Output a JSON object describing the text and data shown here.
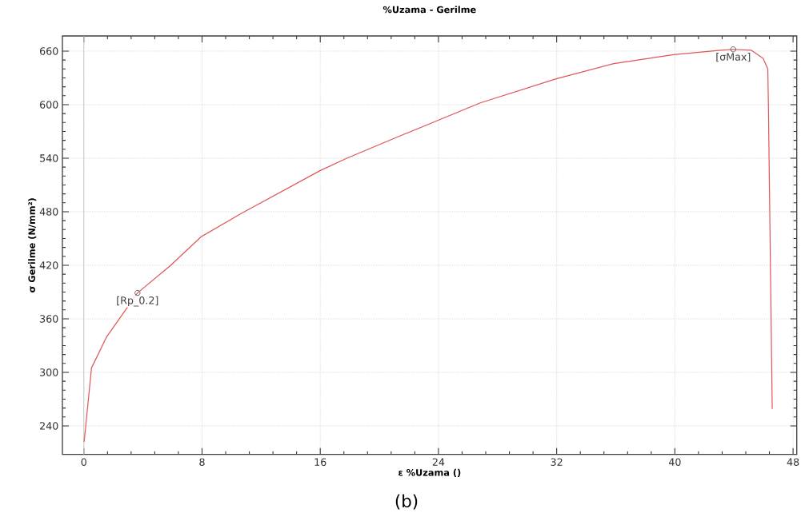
{
  "chart_data": {
    "type": "line",
    "title": "%Uzama - Gerilme",
    "xlabel": "ε %Uzama ()",
    "ylabel": "σ Gerilme (N/mm²)",
    "xlim": [
      -1.45,
      48.25
    ],
    "ylim": [
      208,
      677
    ],
    "xticks": [
      0,
      8,
      16,
      24,
      32,
      40,
      48
    ],
    "yticks": [
      240,
      300,
      360,
      420,
      480,
      540,
      600,
      660
    ],
    "grid": true,
    "marker": "none",
    "line_style": "solid",
    "ref_lines": [
      {
        "axis": "x",
        "value": 0,
        "color": "#c8c8c8"
      }
    ],
    "series": [
      {
        "color": "#e05555",
        "x": [
          0.02,
          0.52,
          1.55,
          3.63,
          5.88,
          7.94,
          10.76,
          15.98,
          17.8,
          21.41,
          26.83,
          31.97,
          35.86,
          39.92,
          43.1,
          43.95,
          45.16,
          45.97,
          46.29,
          46.33,
          46.59
        ],
        "values": [
          222,
          305,
          340,
          389,
          420,
          452,
          479,
          526,
          540,
          565,
          602,
          629,
          646,
          656,
          661,
          662,
          661,
          652,
          640,
          600,
          259
        ]
      },
      {
        "type": "scatter",
        "marker": "circle",
        "color": "#555555",
        "x": [
          3.63,
          43.95
        ],
        "values": [
          389,
          662
        ]
      }
    ],
    "annotations": [
      {
        "text": "[Rp_0.2]",
        "x": 3.63,
        "y": 389
      },
      {
        "text": "[σMax]",
        "x": 43.95,
        "y": 662
      },
      "(b)"
    ]
  }
}
